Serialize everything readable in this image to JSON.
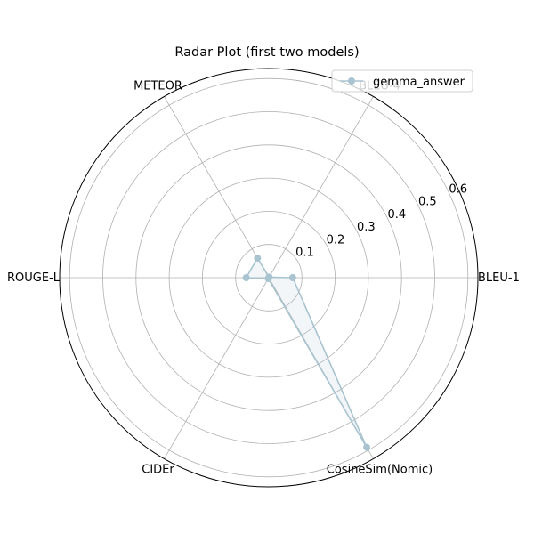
{
  "chart_data": {
    "type": "radar",
    "title": "Radar Plot (first two models)",
    "categories": [
      "BLEU-1",
      "BLEU-4",
      "METEOR",
      "ROUGE-L",
      "CIDEr",
      "CosineSim(Nomic)"
    ],
    "series": [
      {
        "name": "gemma_answer",
        "values": [
          0.072,
          0.002,
          0.068,
          0.068,
          0.003,
          0.59
        ],
        "color": "#a9c4d0"
      }
    ],
    "rlim": [
      0,
      0.63
    ],
    "rticks": [
      "0.1",
      "0.2",
      "0.3",
      "0.4",
      "0.5",
      "0.6"
    ],
    "grid": true,
    "legend": "top-right"
  }
}
